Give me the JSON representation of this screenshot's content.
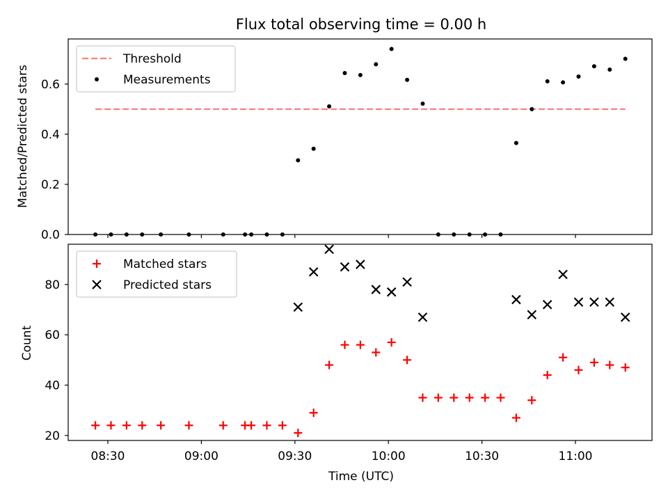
{
  "chart_data": {
    "type": "scatter",
    "title": "Flux total observing time = 0.00 h",
    "xlabel": "Time (UTC)",
    "x_tick_labels": [
      "08:30",
      "09:00",
      "09:30",
      "10:00",
      "10:30",
      "11:00"
    ],
    "times": [
      "08:26",
      "08:31",
      "08:36",
      "08:41",
      "08:47",
      "08:56",
      "09:07",
      "09:14",
      "09:16",
      "09:21",
      "09:26",
      "09:31",
      "09:36",
      "09:41",
      "09:46",
      "09:51",
      "09:56",
      "10:01",
      "10:06",
      "10:11",
      "10:16",
      "10:21",
      "10:26",
      "10:31",
      "10:36",
      "10:41",
      "10:46",
      "10:51",
      "10:56",
      "11:01",
      "11:06",
      "11:11",
      "11:16"
    ],
    "top": {
      "ylabel": "Matched/Predicted stars",
      "yticks": [
        "0.0",
        "0.2",
        "0.4",
        "0.6"
      ],
      "ylim": [
        0,
        0.78
      ],
      "threshold": {
        "name": "Threshold",
        "value": 0.5,
        "color": "#ff7f7f"
      },
      "measurements": {
        "name": "Measurements",
        "color": "#000000",
        "values": [
          0,
          0,
          0,
          0,
          0,
          0,
          0,
          0,
          0,
          0,
          0,
          0.296,
          0.342,
          0.511,
          0.644,
          0.636,
          0.679,
          0.74,
          0.617,
          0.522,
          0,
          0,
          0,
          0,
          0,
          0.365,
          0.5,
          0.611,
          0.607,
          0.63,
          0.671,
          0.658,
          0.701
        ]
      },
      "legend_loc": "upper left"
    },
    "bottom": {
      "ylabel": "Count",
      "yticks": [
        "20",
        "40",
        "60",
        "80"
      ],
      "ylim": [
        18,
        96
      ],
      "matched": {
        "name": "Matched stars",
        "color": "#ff0000",
        "values": [
          24,
          24,
          24,
          24,
          24,
          24,
          24,
          24,
          24,
          24,
          24,
          21,
          29,
          48,
          56,
          56,
          53,
          57,
          50,
          35,
          35,
          35,
          35,
          35,
          35,
          27,
          34,
          44,
          51,
          46,
          49,
          48,
          47
        ]
      },
      "predicted": {
        "name": "Predicted stars",
        "color": "#000000",
        "values": [
          null,
          null,
          null,
          null,
          null,
          null,
          null,
          null,
          null,
          null,
          null,
          71,
          85,
          94,
          87,
          88,
          78,
          77,
          81,
          67,
          null,
          null,
          null,
          null,
          null,
          74,
          68,
          72,
          84,
          73,
          73,
          73,
          67
        ]
      },
      "legend_loc": "upper left"
    }
  }
}
